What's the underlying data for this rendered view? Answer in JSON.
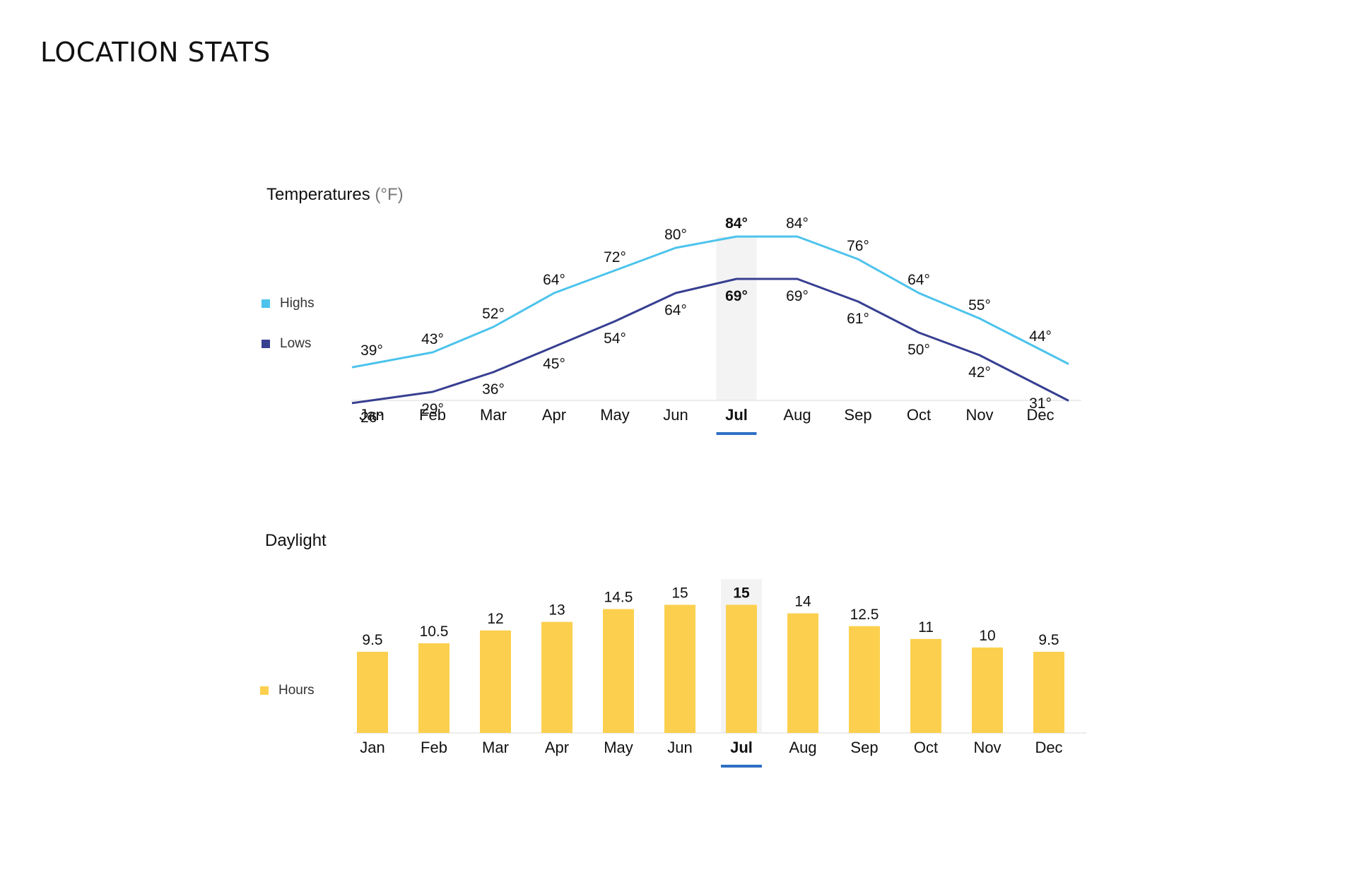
{
  "page": {
    "title": "LOCATION STATS"
  },
  "colors": {
    "highs": "#4cc3ec",
    "lows": "#373f91",
    "hours": "#fcd04e",
    "highlight_bg": "#f3f3f3",
    "highlight_underline": "#2e6fc4",
    "axis": "#e6e6e6"
  },
  "chart_data": [
    {
      "type": "line",
      "title": "Temperatures",
      "title_unit": "(°F)",
      "categories": [
        "Jan",
        "Feb",
        "Mar",
        "Apr",
        "May",
        "Jun",
        "Jul",
        "Aug",
        "Sep",
        "Oct",
        "Nov",
        "Dec"
      ],
      "highlight": "Jul",
      "value_suffix": "°",
      "legend_position": "left",
      "series": [
        {
          "name": "Highs",
          "values": [
            39,
            43,
            52,
            64,
            72,
            80,
            84,
            84,
            76,
            64,
            55,
            44
          ]
        },
        {
          "name": "Lows",
          "values": [
            26,
            29,
            36,
            45,
            54,
            64,
            69,
            69,
            61,
            50,
            42,
            31
          ]
        }
      ],
      "grid": false
    },
    {
      "type": "bar",
      "title": "Daylight",
      "categories": [
        "Jan",
        "Feb",
        "Mar",
        "Apr",
        "May",
        "Jun",
        "Jul",
        "Aug",
        "Sep",
        "Oct",
        "Nov",
        "Dec"
      ],
      "highlight": "Jul",
      "legend_position": "left",
      "series": [
        {
          "name": "Hours",
          "values": [
            9.5,
            10.5,
            12,
            13,
            14.5,
            15,
            15,
            14,
            12.5,
            11,
            10,
            9.5
          ]
        }
      ],
      "grid": false
    }
  ]
}
